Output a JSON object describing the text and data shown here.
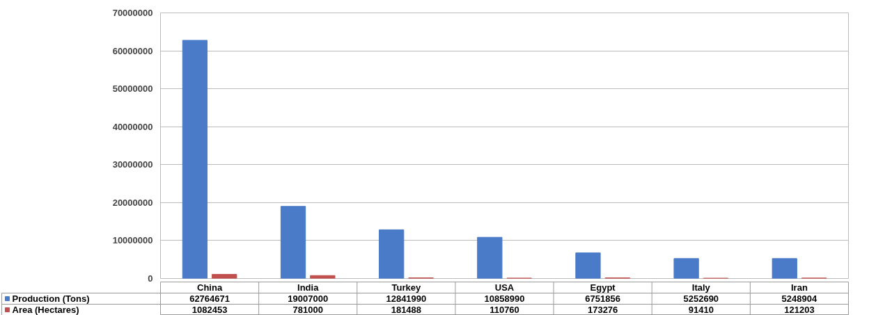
{
  "chart_data": {
    "type": "bar",
    "categories": [
      "China",
      "India",
      "Turkey",
      "USA",
      "Egypt",
      "Italy",
      "Iran"
    ],
    "series": [
      {
        "name": "Production (Tons)",
        "color": "#4a7bc8",
        "values": [
          62764671,
          19007000,
          12841990,
          10858990,
          6751856,
          5252690,
          5248904
        ]
      },
      {
        "name": "Area (Hectares)",
        "color": "#c0504d",
        "values": [
          1082453,
          781000,
          181488,
          110760,
          173276,
          91410,
          121203
        ]
      }
    ],
    "ylim": [
      0,
      70000000
    ],
    "yticks": [
      0,
      10000000,
      20000000,
      30000000,
      40000000,
      50000000,
      60000000,
      70000000
    ],
    "grid": "y",
    "legend": "bottom",
    "data_labels": true
  }
}
